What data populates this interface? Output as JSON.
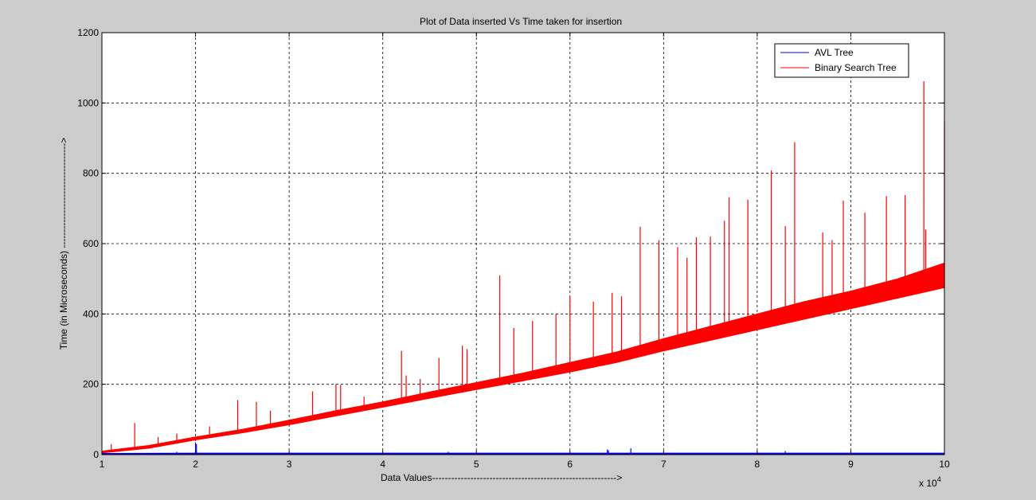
{
  "chart_data": {
    "type": "line",
    "title": "Plot of Data inserted Vs Time taken for insertion",
    "xlabel": "Data Values---------------------------------------------------------->",
    "ylabel": "Time (in Microseconds) --------------------------------->",
    "x_multiplier_label": "x 10",
    "x_multiplier_exponent": "4",
    "xlim": [
      1,
      10
    ],
    "ylim": [
      0,
      1200
    ],
    "x_ticks": [
      1,
      2,
      3,
      4,
      5,
      6,
      7,
      8,
      9,
      10
    ],
    "x_tick_labels": [
      "1",
      "2",
      "3",
      "4",
      "5",
      "6",
      "7",
      "8",
      "9",
      "10"
    ],
    "y_ticks": [
      0,
      200,
      400,
      600,
      800,
      1000,
      1200
    ],
    "y_tick_labels": [
      "0",
      "200",
      "400",
      "600",
      "800",
      "1000",
      "1200"
    ],
    "grid": true,
    "legend_position": "top-right",
    "colors": {
      "avl": "#0000ff",
      "bst": "#ff0000"
    },
    "series": [
      {
        "name": "AVL Tree",
        "color": "#0000ff",
        "x": [
          1.0,
          2.0,
          3.0,
          4.0,
          5.0,
          6.0,
          7.0,
          8.0,
          9.0,
          10.0
        ],
        "y": [
          2,
          3,
          3,
          3,
          3,
          3,
          3,
          3,
          3,
          3
        ],
        "spikes": [
          {
            "x": 1.8,
            "y": 8
          },
          {
            "x": 2.0,
            "y": 35
          },
          {
            "x": 2.01,
            "y": 30
          },
          {
            "x": 4.7,
            "y": 8
          },
          {
            "x": 6.4,
            "y": 15
          },
          {
            "x": 6.41,
            "y": 12
          },
          {
            "x": 6.65,
            "y": 18
          },
          {
            "x": 8.3,
            "y": 10
          }
        ]
      },
      {
        "name": "Binary Search Tree",
        "color": "#ff0000",
        "x": [
          1.0,
          1.5,
          2.0,
          2.5,
          3.0,
          3.5,
          4.0,
          4.5,
          5.0,
          5.5,
          6.0,
          6.5,
          7.0,
          7.5,
          8.0,
          8.5,
          9.0,
          9.5,
          10.0
        ],
        "y_lower": [
          5,
          18,
          42,
          62,
          85,
          110,
          135,
          160,
          185,
          210,
          235,
          262,
          295,
          325,
          355,
          385,
          415,
          445,
          475
        ],
        "y_upper": [
          10,
          26,
          50,
          72,
          98,
          125,
          150,
          178,
          205,
          232,
          262,
          292,
          330,
          365,
          400,
          435,
          465,
          500,
          545
        ],
        "spikes": [
          {
            "x": 1.1,
            "y": 30
          },
          {
            "x": 1.35,
            "y": 90
          },
          {
            "x": 1.6,
            "y": 50
          },
          {
            "x": 1.8,
            "y": 60
          },
          {
            "x": 2.15,
            "y": 80
          },
          {
            "x": 2.45,
            "y": 155
          },
          {
            "x": 2.65,
            "y": 150
          },
          {
            "x": 2.8,
            "y": 125
          },
          {
            "x": 3.25,
            "y": 180
          },
          {
            "x": 3.5,
            "y": 200
          },
          {
            "x": 3.55,
            "y": 198
          },
          {
            "x": 3.8,
            "y": 165
          },
          {
            "x": 4.2,
            "y": 295
          },
          {
            "x": 4.25,
            "y": 225
          },
          {
            "x": 4.4,
            "y": 215
          },
          {
            "x": 4.6,
            "y": 275
          },
          {
            "x": 4.85,
            "y": 310
          },
          {
            "x": 4.9,
            "y": 300
          },
          {
            "x": 5.25,
            "y": 510
          },
          {
            "x": 5.4,
            "y": 360
          },
          {
            "x": 5.6,
            "y": 380
          },
          {
            "x": 5.85,
            "y": 400
          },
          {
            "x": 6.0,
            "y": 450
          },
          {
            "x": 6.25,
            "y": 435
          },
          {
            "x": 6.45,
            "y": 460
          },
          {
            "x": 6.55,
            "y": 450
          },
          {
            "x": 6.75,
            "y": 648
          },
          {
            "x": 6.95,
            "y": 610
          },
          {
            "x": 7.15,
            "y": 590
          },
          {
            "x": 7.25,
            "y": 560
          },
          {
            "x": 7.35,
            "y": 618
          },
          {
            "x": 7.5,
            "y": 620
          },
          {
            "x": 7.65,
            "y": 665
          },
          {
            "x": 7.7,
            "y": 732
          },
          {
            "x": 7.9,
            "y": 725
          },
          {
            "x": 8.15,
            "y": 808
          },
          {
            "x": 8.3,
            "y": 650
          },
          {
            "x": 8.4,
            "y": 888
          },
          {
            "x": 8.7,
            "y": 632
          },
          {
            "x": 8.8,
            "y": 610
          },
          {
            "x": 8.92,
            "y": 722
          },
          {
            "x": 9.15,
            "y": 688
          },
          {
            "x": 9.38,
            "y": 735
          },
          {
            "x": 9.58,
            "y": 738
          },
          {
            "x": 9.78,
            "y": 1062
          },
          {
            "x": 9.8,
            "y": 640
          },
          {
            "x": 10.0,
            "y": 948
          }
        ]
      }
    ]
  }
}
